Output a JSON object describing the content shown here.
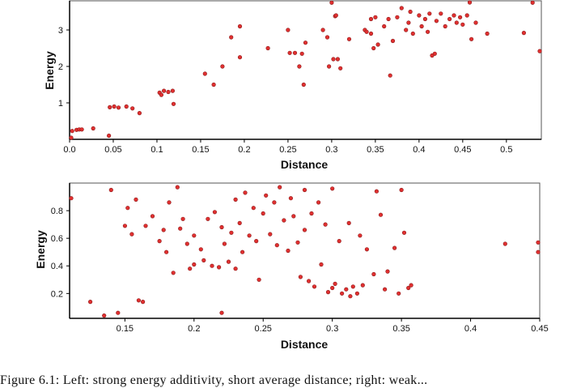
{
  "caption": "Figure 6.1: Left: strong energy additivity, short average distance; right: weak...",
  "colors": {
    "point_fill": "#e03030",
    "point_stroke": "#8a1a1a",
    "axis": "#000000",
    "frame": "#555555"
  },
  "chart_data": [
    {
      "type": "scatter",
      "xlabel": "Distance",
      "ylabel": "Energy",
      "xlim": [
        0,
        0.54
      ],
      "ylim": [
        0,
        3.8
      ],
      "xticks": [
        0.0,
        0.05,
        0.1,
        0.15,
        0.2,
        0.25,
        0.3,
        0.35,
        0.4,
        0.45,
        0.5
      ],
      "xtick_labels": [
        "0.0",
        "0.05",
        "0.1",
        "0.15",
        "0.2",
        "0.25",
        "0.3",
        "0.35",
        "0.4",
        "0.45",
        "0.5"
      ],
      "yticks": [
        1,
        2,
        3
      ],
      "ytick_labels": [
        "1",
        "2",
        "3"
      ],
      "grid": false,
      "points": [
        [
          0.0,
          0.02
        ],
        [
          0.003,
          0.23
        ],
        [
          0.008,
          0.26
        ],
        [
          0.011,
          0.27
        ],
        [
          0.014,
          0.27
        ],
        [
          0.027,
          0.3
        ],
        [
          0.045,
          0.1
        ],
        [
          0.046,
          0.88
        ],
        [
          0.051,
          0.9
        ],
        [
          0.056,
          0.87
        ],
        [
          0.065,
          0.9
        ],
        [
          0.072,
          0.85
        ],
        [
          0.08,
          0.72
        ],
        [
          0.103,
          1.28
        ],
        [
          0.105,
          1.22
        ],
        [
          0.108,
          1.33
        ],
        [
          0.113,
          1.3
        ],
        [
          0.118,
          1.33
        ],
        [
          0.119,
          0.97
        ],
        [
          0.155,
          1.8
        ],
        [
          0.165,
          1.5
        ],
        [
          0.175,
          2.0
        ],
        [
          0.185,
          2.8
        ],
        [
          0.195,
          3.1
        ],
        [
          0.195,
          2.25
        ],
        [
          0.227,
          2.5
        ],
        [
          0.25,
          3.0
        ],
        [
          0.252,
          2.37
        ],
        [
          0.258,
          2.37
        ],
        [
          0.263,
          2.0
        ],
        [
          0.266,
          2.35
        ],
        [
          0.268,
          1.5
        ],
        [
          0.27,
          2.65
        ],
        [
          0.29,
          3.0
        ],
        [
          0.295,
          2.8
        ],
        [
          0.297,
          2.0
        ],
        [
          0.3,
          3.75
        ],
        [
          0.302,
          2.2
        ],
        [
          0.304,
          3.38
        ],
        [
          0.305,
          3.4
        ],
        [
          0.307,
          2.2
        ],
        [
          0.31,
          1.95
        ],
        [
          0.32,
          2.75
        ],
        [
          0.338,
          3.0
        ],
        [
          0.34,
          2.95
        ],
        [
          0.345,
          2.9
        ],
        [
          0.345,
          3.3
        ],
        [
          0.348,
          2.5
        ],
        [
          0.35,
          3.35
        ],
        [
          0.353,
          2.6
        ],
        [
          0.36,
          3.1
        ],
        [
          0.365,
          3.3
        ],
        [
          0.367,
          1.75
        ],
        [
          0.37,
          2.7
        ],
        [
          0.375,
          3.35
        ],
        [
          0.38,
          3.6
        ],
        [
          0.385,
          3.0
        ],
        [
          0.388,
          3.2
        ],
        [
          0.39,
          3.5
        ],
        [
          0.393,
          2.9
        ],
        [
          0.4,
          3.4
        ],
        [
          0.403,
          3.1
        ],
        [
          0.407,
          3.3
        ],
        [
          0.41,
          2.95
        ],
        [
          0.412,
          3.45
        ],
        [
          0.415,
          2.3
        ],
        [
          0.418,
          2.35
        ],
        [
          0.42,
          3.25
        ],
        [
          0.425,
          3.45
        ],
        [
          0.43,
          3.1
        ],
        [
          0.435,
          3.3
        ],
        [
          0.44,
          3.4
        ],
        [
          0.443,
          3.2
        ],
        [
          0.447,
          3.35
        ],
        [
          0.45,
          3.15
        ],
        [
          0.455,
          3.4
        ],
        [
          0.458,
          3.85
        ],
        [
          0.46,
          2.75
        ],
        [
          0.465,
          3.2
        ],
        [
          0.478,
          2.9
        ],
        [
          0.52,
          2.92
        ],
        [
          0.53,
          3.75
        ],
        [
          0.54,
          2.42
        ]
      ]
    },
    {
      "type": "scatter",
      "xlabel": "Distance",
      "ylabel": "Energy",
      "xlim": [
        0.11,
        0.45
      ],
      "ylim": [
        0.02,
        1.0
      ],
      "xticks": [
        0.15,
        0.2,
        0.25,
        0.3,
        0.35,
        0.4,
        0.45
      ],
      "xtick_labels": [
        "0.15",
        "0.2",
        "0.25",
        "0.3",
        "0.35",
        "0.4",
        "0.45"
      ],
      "yticks": [
        0.2,
        0.4,
        0.6,
        0.8
      ],
      "ytick_labels": [
        "0.2",
        "0.4",
        "0.6",
        "0.8"
      ],
      "grid": false,
      "points": [
        [
          0.11,
          0.89
        ],
        [
          0.125,
          0.14
        ],
        [
          0.135,
          0.04
        ],
        [
          0.14,
          0.95
        ],
        [
          0.145,
          0.06
        ],
        [
          0.15,
          0.69
        ],
        [
          0.152,
          0.82
        ],
        [
          0.155,
          0.63
        ],
        [
          0.158,
          0.88
        ],
        [
          0.16,
          0.15
        ],
        [
          0.163,
          0.14
        ],
        [
          0.165,
          0.69
        ],
        [
          0.17,
          0.76
        ],
        [
          0.175,
          0.58
        ],
        [
          0.178,
          0.66
        ],
        [
          0.18,
          0.5
        ],
        [
          0.182,
          0.86
        ],
        [
          0.185,
          0.35
        ],
        [
          0.188,
          0.97
        ],
        [
          0.19,
          0.67
        ],
        [
          0.192,
          0.74
        ],
        [
          0.195,
          0.56
        ],
        [
          0.197,
          0.38
        ],
        [
          0.2,
          0.62
        ],
        [
          0.2,
          0.41
        ],
        [
          0.205,
          0.52
        ],
        [
          0.207,
          0.44
        ],
        [
          0.21,
          0.74
        ],
        [
          0.213,
          0.4
        ],
        [
          0.215,
          0.79
        ],
        [
          0.218,
          0.39
        ],
        [
          0.22,
          0.68
        ],
        [
          0.22,
          0.06
        ],
        [
          0.222,
          0.56
        ],
        [
          0.225,
          0.43
        ],
        [
          0.227,
          0.64
        ],
        [
          0.23,
          0.88
        ],
        [
          0.23,
          0.38
        ],
        [
          0.233,
          0.71
        ],
        [
          0.235,
          0.5
        ],
        [
          0.237,
          0.93
        ],
        [
          0.24,
          0.62
        ],
        [
          0.243,
          0.82
        ],
        [
          0.245,
          0.58
        ],
        [
          0.247,
          0.3
        ],
        [
          0.25,
          0.78
        ],
        [
          0.252,
          0.91
        ],
        [
          0.255,
          0.63
        ],
        [
          0.258,
          0.86
        ],
        [
          0.26,
          0.55
        ],
        [
          0.262,
          0.97
        ],
        [
          0.265,
          0.73
        ],
        [
          0.268,
          0.51
        ],
        [
          0.27,
          0.89
        ],
        [
          0.272,
          0.76
        ],
        [
          0.275,
          0.57
        ],
        [
          0.277,
          0.32
        ],
        [
          0.28,
          0.66
        ],
        [
          0.28,
          0.95
        ],
        [
          0.283,
          0.29
        ],
        [
          0.285,
          0.78
        ],
        [
          0.287,
          0.25
        ],
        [
          0.29,
          0.86
        ],
        [
          0.292,
          0.41
        ],
        [
          0.295,
          0.7
        ],
        [
          0.297,
          0.21
        ],
        [
          0.3,
          0.96
        ],
        [
          0.3,
          0.24
        ],
        [
          0.302,
          0.27
        ],
        [
          0.305,
          0.58
        ],
        [
          0.307,
          0.2
        ],
        [
          0.31,
          0.23
        ],
        [
          0.312,
          0.71
        ],
        [
          0.313,
          0.18
        ],
        [
          0.315,
          0.25
        ],
        [
          0.318,
          0.2
        ],
        [
          0.32,
          0.62
        ],
        [
          0.322,
          0.26
        ],
        [
          0.325,
          0.52
        ],
        [
          0.33,
          0.34
        ],
        [
          0.332,
          0.94
        ],
        [
          0.335,
          0.77
        ],
        [
          0.338,
          0.23
        ],
        [
          0.34,
          0.36
        ],
        [
          0.345,
          0.53
        ],
        [
          0.348,
          0.2
        ],
        [
          0.35,
          0.95
        ],
        [
          0.352,
          0.64
        ],
        [
          0.355,
          0.24
        ],
        [
          0.357,
          0.26
        ],
        [
          0.425,
          0.56
        ],
        [
          0.45,
          0.57
        ],
        [
          0.45,
          0.5
        ]
      ]
    }
  ]
}
